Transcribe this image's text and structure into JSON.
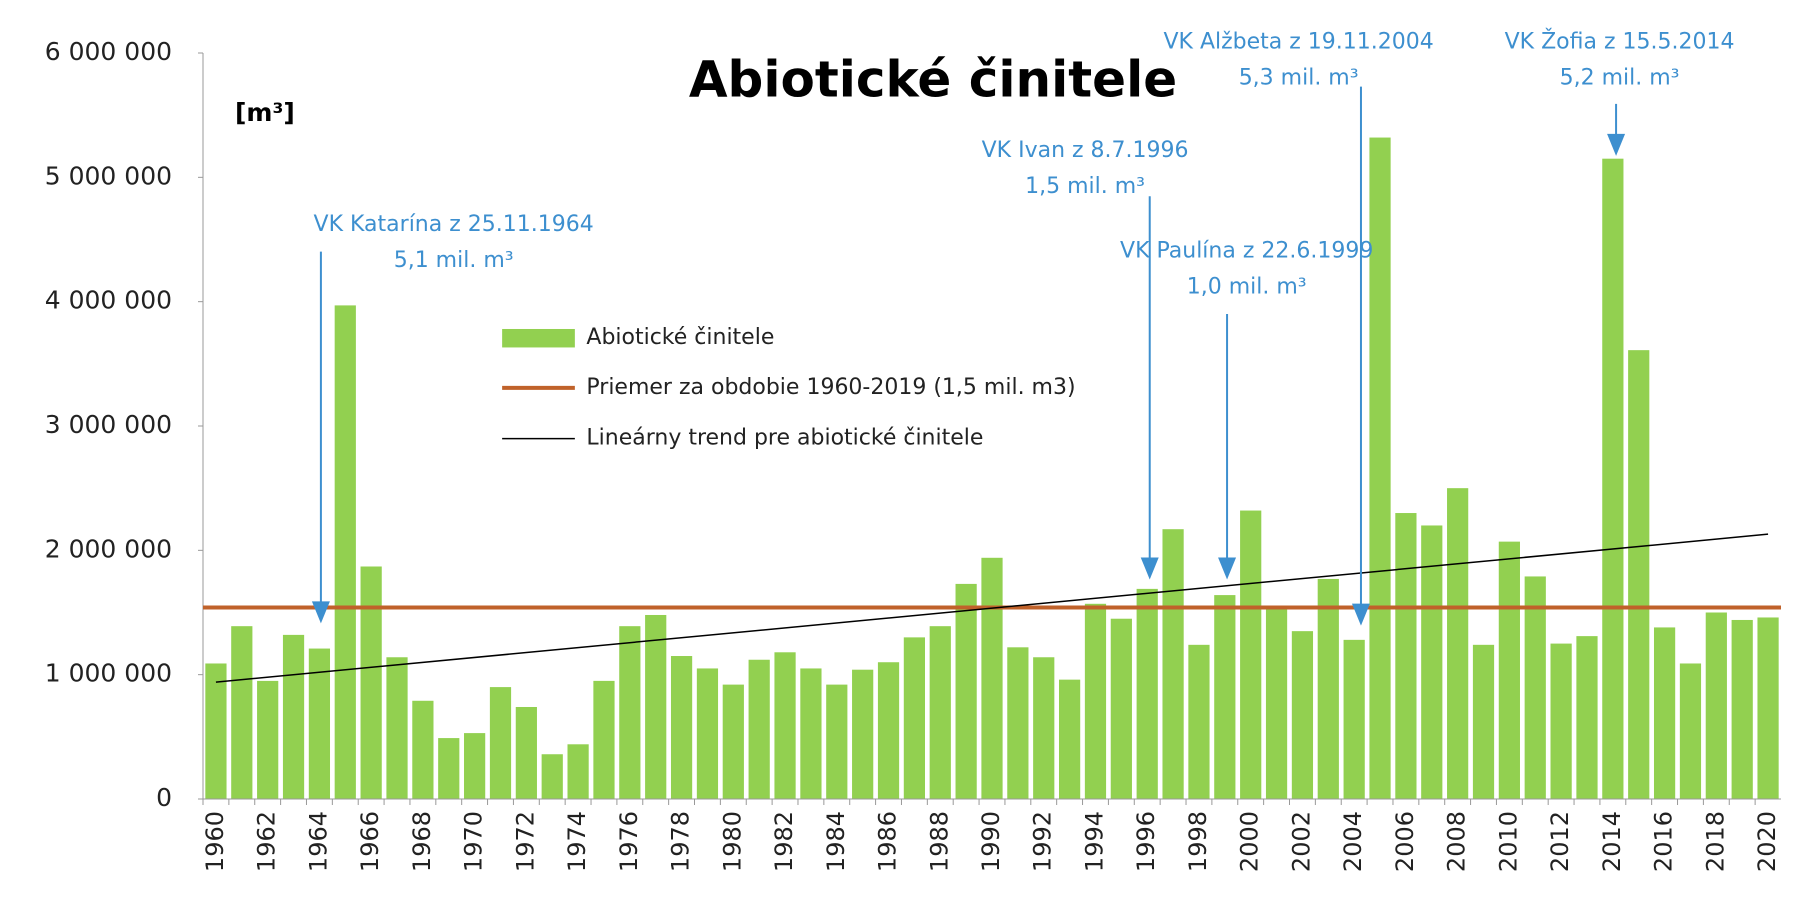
{
  "chart_data": {
    "type": "bar",
    "title": "Abiotické činitele",
    "y_label": "[m³]",
    "categories": [
      "1960",
      null,
      "1962",
      null,
      "1964",
      null,
      "1966",
      null,
      "1968",
      null,
      "1970",
      null,
      "1972",
      null,
      "1974",
      null,
      "1976",
      null,
      "1978",
      null,
      "1980",
      null,
      "1982",
      null,
      "1984",
      null,
      "1986",
      null,
      "1988",
      null,
      "1990",
      null,
      "1992",
      null,
      "1994",
      null,
      "1996",
      null,
      "1998",
      null,
      "2000",
      null,
      "2002",
      null,
      "2004",
      null,
      "2006",
      null,
      "2008",
      null,
      "2010",
      null,
      "2012",
      null,
      "2014",
      null,
      "2016",
      null,
      "2018",
      null,
      "2020"
    ],
    "series": [
      {
        "name": "Abiotické činitele",
        "color": "#92d050",
        "values": [
          1090000,
          1390000,
          950000,
          1320000,
          1210000,
          3970000,
          1870000,
          1140000,
          790000,
          490000,
          530000,
          900000,
          740000,
          360000,
          440000,
          950000,
          1390000,
          1480000,
          1150000,
          1050000,
          920000,
          1120000,
          1180000,
          1050000,
          920000,
          1040000,
          1100000,
          1300000,
          1390000,
          1730000,
          1940000,
          1220000,
          1140000,
          960000,
          1570000,
          1450000,
          1690000,
          2170000,
          1240000,
          1640000,
          2320000,
          1530000,
          1350000,
          1770000,
          1280000,
          5320000,
          2300000,
          2200000,
          2500000,
          1240000,
          2070000,
          1790000,
          1250000,
          1310000,
          5150000,
          3610000,
          1380000,
          1090000,
          1500000,
          1440000,
          1460000
        ]
      }
    ],
    "average": {
      "name": "Priemer za obdobie 1960-2019 (1,5 mil. m3)",
      "color": "#c0622a",
      "value": 1540000
    },
    "trend": {
      "name": "Lineárny trend pre abiotické činitele",
      "color": "#000000",
      "x": [
        1960,
        2020
      ],
      "values": [
        940000,
        2130000
      ]
    },
    "ylim": [
      0,
      6000000
    ],
    "yticks": [
      {
        "value": 0,
        "label": "0"
      },
      {
        "value": 1000000,
        "label": "1 000 000"
      },
      {
        "value": 2000000,
        "label": "2 000 000"
      },
      {
        "value": 3000000,
        "label": "3 000 000"
      },
      {
        "value": 4000000,
        "label": "4 000 000"
      },
      {
        "value": 5000000,
        "label": "5 000 000"
      },
      {
        "value": 6000000,
        "label": "6 000 000"
      }
    ],
    "annotations": [
      {
        "text": [
          "VK Katarína z 25.11.1964",
          "5,1 mil. m³"
        ]
      },
      {
        "text": [
          "VK Ivan z 8.7.1996",
          "1,5 mil. m³"
        ]
      },
      {
        "text": [
          "VK Paulína z 22.6.1999",
          "1,0 mil. m³"
        ]
      },
      {
        "text": [
          "VK Alžbeta z 19.11.2004",
          "5,3 mil. m³"
        ]
      },
      {
        "text": [
          "VK Žofia z 15.5.2014",
          "5,2 mil. m³"
        ]
      }
    ],
    "annotation_color": "#3d8fcf"
  }
}
